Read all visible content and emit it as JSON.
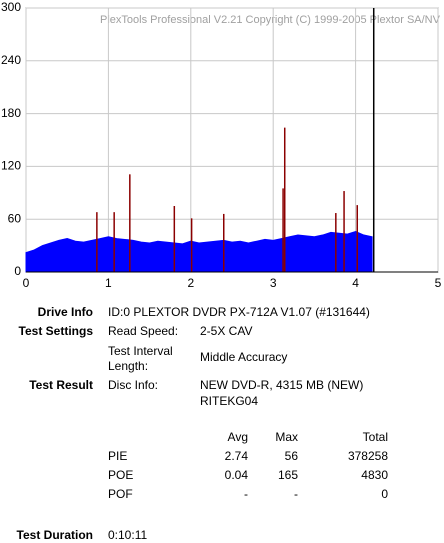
{
  "chart_data": {
    "type": "area",
    "title": "PlexTools Professional V2.21 Copyright (C) 1999-2005 Plextor SA/NV",
    "xlim": [
      0,
      5
    ],
    "xticks": [
      0,
      1,
      2,
      3,
      4,
      5
    ],
    "ylim": [
      0,
      300
    ],
    "yticks": [
      0,
      60,
      120,
      180,
      240,
      300
    ],
    "grid": true,
    "series": [
      {
        "name": "PIE",
        "color": "#0000ff",
        "style": "area",
        "x": [
          0,
          0.1,
          0.2,
          0.3,
          0.4,
          0.5,
          0.6,
          0.7,
          0.8,
          0.9,
          1,
          1.1,
          1.2,
          1.3,
          1.4,
          1.5,
          1.6,
          1.7,
          1.8,
          1.9,
          2,
          2.1,
          2.2,
          2.3,
          2.4,
          2.5,
          2.6,
          2.7,
          2.8,
          2.9,
          3,
          3.1,
          3.2,
          3.3,
          3.4,
          3.5,
          3.6,
          3.7,
          3.8,
          3.9,
          4,
          4.1,
          4.2
        ],
        "values": [
          22,
          25,
          30,
          33,
          36,
          38,
          35,
          34,
          36,
          38,
          40,
          38,
          37,
          36,
          34,
          33,
          35,
          34,
          33,
          32,
          35,
          33,
          34,
          35,
          36,
          34,
          35,
          33,
          35,
          37,
          36,
          38,
          40,
          42,
          41,
          40,
          42,
          45,
          44,
          43,
          46,
          42,
          40
        ]
      },
      {
        "name": "POE",
        "color": "#8b0000",
        "style": "spike",
        "x": [
          0.86,
          1.07,
          1.26,
          1.8,
          2.01,
          2.4,
          3.12,
          3.14,
          3.76,
          3.86,
          4.02
        ],
        "values": [
          68,
          68,
          111,
          75,
          61,
          66,
          95,
          164,
          67,
          92,
          76
        ]
      }
    ],
    "vlines": [
      {
        "x": 4.22,
        "color": "#000000"
      }
    ]
  },
  "report": {
    "drive_info": {
      "label": "Drive Info",
      "value": "ID:0 PLEXTOR DVDR PX-712A V1.07 (#131644)"
    },
    "test_settings": {
      "label": "Test Settings",
      "rows": [
        [
          "Read Speed:",
          "2-5X CAV"
        ],
        [
          "Test Interval Length:",
          "Middle Accuracy"
        ]
      ]
    },
    "test_result": {
      "label": "Test Result",
      "key": "Disc Info:",
      "lines": [
        "NEW DVD-R, 4315 MB (NEW)",
        "RITEKG04"
      ]
    },
    "table": {
      "header": [
        "Avg",
        "Max",
        "Total"
      ],
      "rows": [
        [
          "PIE",
          "2.74",
          "56",
          "378258"
        ],
        [
          "POE",
          "0.04",
          "165",
          "4830"
        ],
        [
          "POF",
          "-",
          "-",
          "0"
        ]
      ]
    },
    "duration": {
      "label": "Test Duration",
      "value": "0:10:11"
    }
  }
}
